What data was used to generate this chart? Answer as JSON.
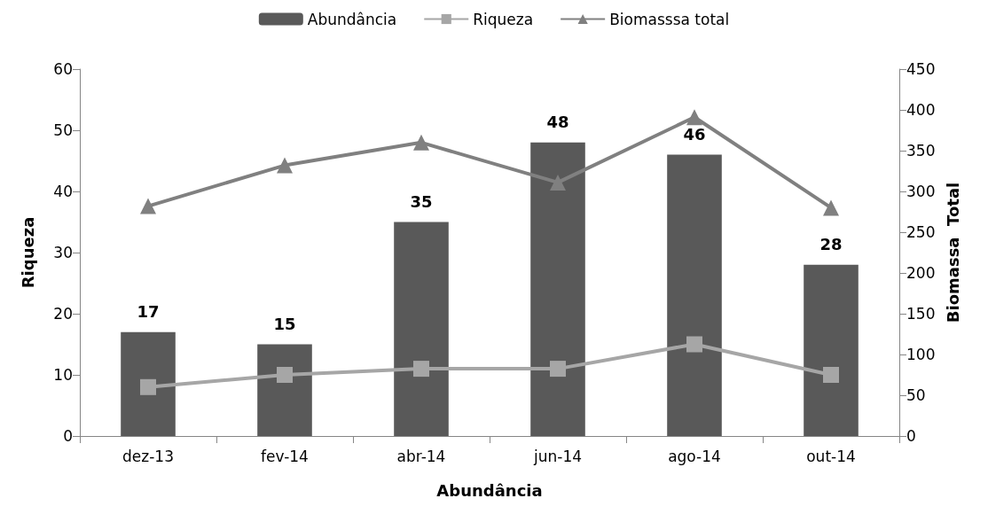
{
  "chart_data": {
    "type": "bar",
    "xlabel": "Abundância",
    "ylabel": "Riqueza",
    "y2label": "Biomassa  Total",
    "categories": [
      "dez-13",
      "fev-14",
      "abr-14",
      "jun-14",
      "ago-14",
      "out-14"
    ],
    "series": [
      {
        "name": "Abundância",
        "color": "#595959",
        "values": [
          17,
          15,
          35,
          48,
          46,
          28
        ],
        "value_labels": [
          "17",
          "15",
          "35",
          "48",
          "46",
          "28"
        ]
      },
      {
        "name": "Riqueza",
        "type": "line",
        "color": "#a6a6a6",
        "marker": "square",
        "values": [
          8,
          10,
          11,
          11,
          15,
          10
        ]
      },
      {
        "name": "Biomasssa total",
        "type": "line",
        "color": "#808080",
        "marker": "triangle",
        "axis": "y2",
        "values": [
          282,
          332,
          360,
          311,
          391,
          280
        ]
      }
    ],
    "ylim": [
      0,
      60
    ],
    "yticks": [
      0,
      10,
      20,
      30,
      40,
      50,
      60
    ],
    "y2lim": [
      0,
      450
    ],
    "y2ticks": [
      0,
      50,
      100,
      150,
      200,
      250,
      300,
      350,
      400,
      450
    ],
    "grid": false,
    "legend": "top",
    "line_style": "solid"
  }
}
